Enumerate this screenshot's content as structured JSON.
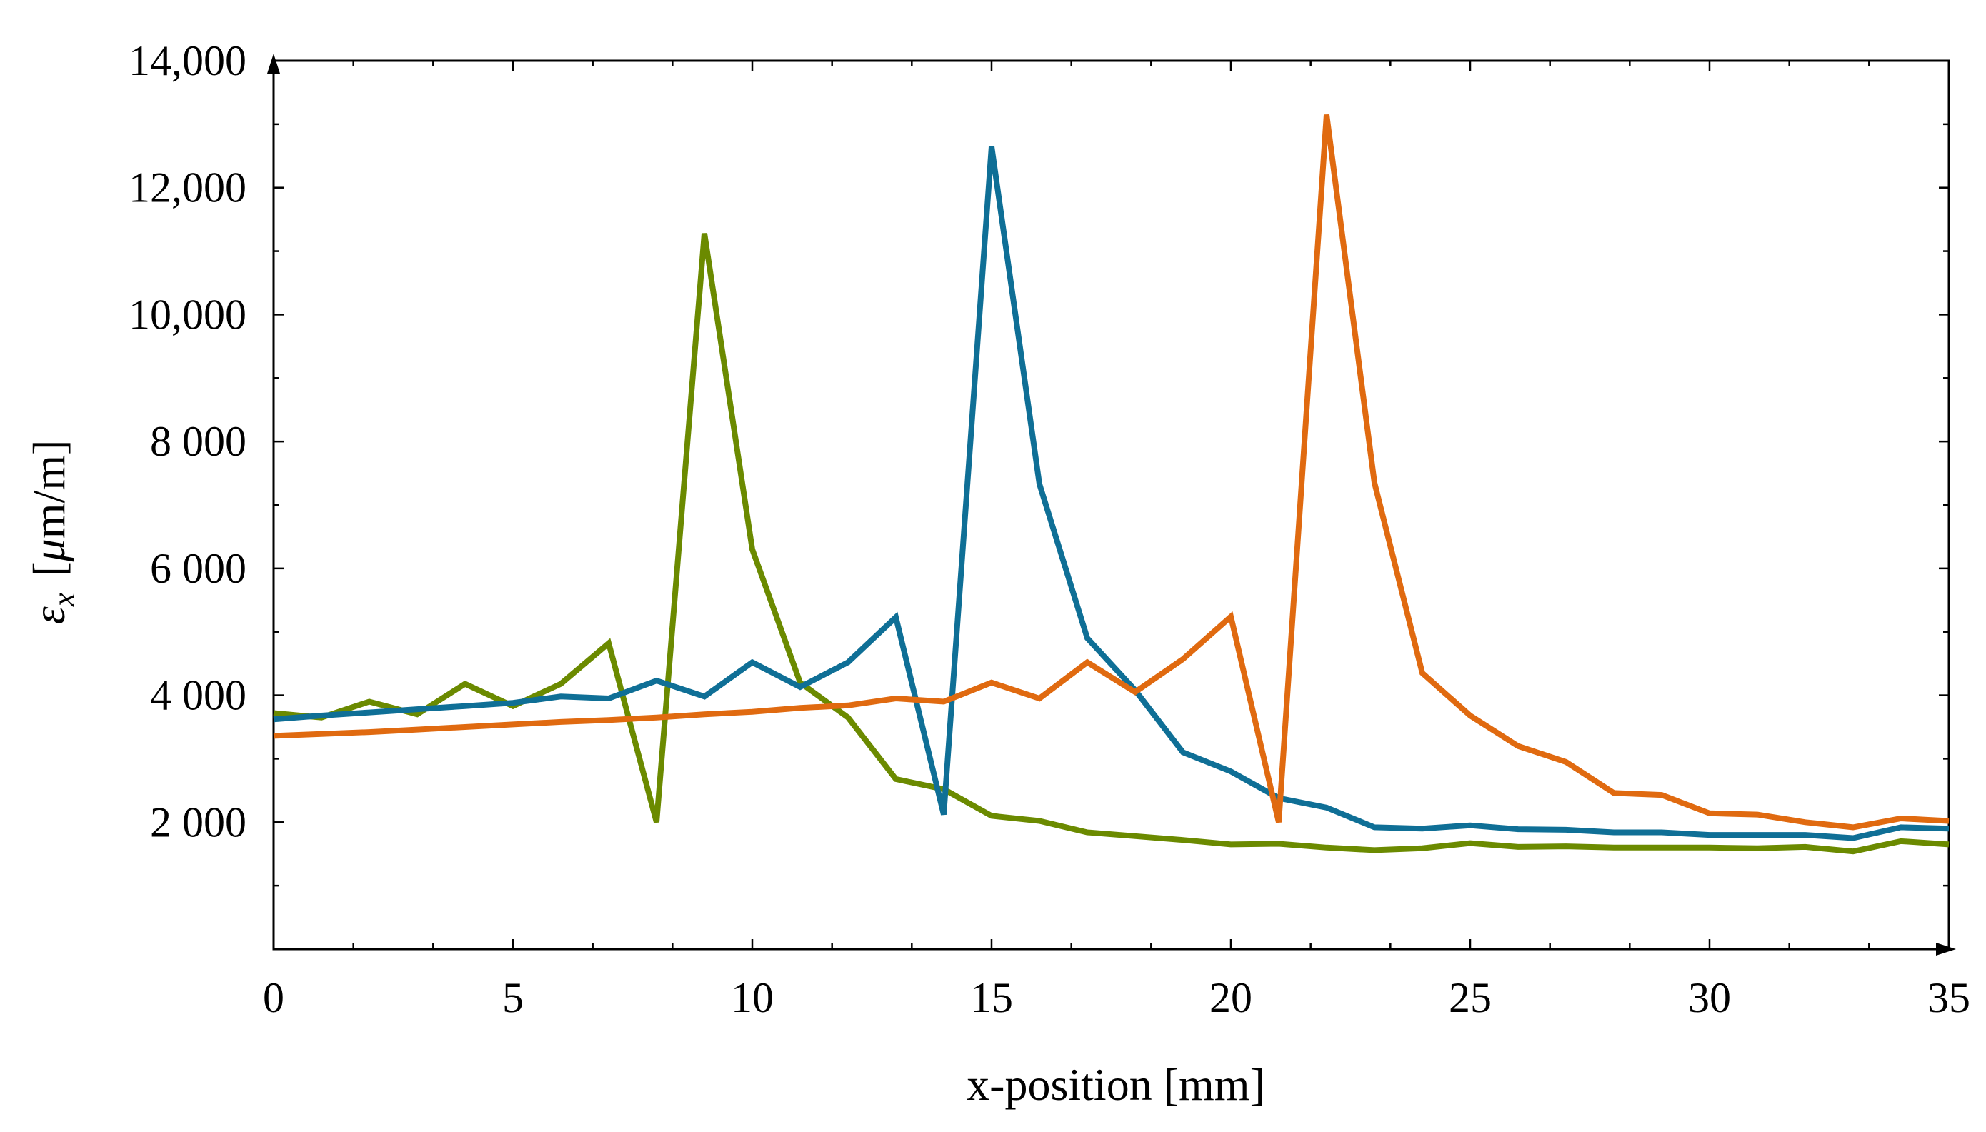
{
  "chart_data": {
    "type": "line",
    "title": "",
    "xlabel": "x-position [mm]",
    "ylabel_parts": {
      "symbol": "ε",
      "subscript": "x",
      "bracket_open": "[",
      "mu": "μ",
      "unit": "m/m",
      "bracket_close": "]"
    },
    "xlim": [
      0,
      35
    ],
    "ylim": [
      0,
      14000
    ],
    "x_ticks": [
      0,
      5,
      10,
      15,
      20,
      25,
      30,
      35
    ],
    "x_tick_labels": [
      "0",
      "5",
      "10",
      "15",
      "20",
      "25",
      "30",
      "35"
    ],
    "y_ticks": [
      2000,
      4000,
      6000,
      8000,
      10000,
      12000,
      14000
    ],
    "y_tick_labels": [
      "2 000",
      "4 000",
      "6 000",
      "8 000",
      "10,000",
      "12,000",
      "14,000"
    ],
    "grid": false,
    "x": [
      0,
      1,
      2,
      3,
      4,
      5,
      6,
      7,
      8,
      9,
      10,
      11,
      12,
      13,
      14,
      15,
      16,
      17,
      18,
      19,
      20,
      21,
      22,
      23,
      24,
      25,
      26,
      27,
      28,
      29,
      30,
      31,
      32,
      33,
      34,
      35
    ],
    "series": [
      {
        "name": "green",
        "color": "#6b8a00",
        "values": [
          3720,
          3650,
          3900,
          3700,
          4180,
          3830,
          4180,
          4820,
          2000,
          11280,
          6300,
          4200,
          3650,
          2680,
          2520,
          2100,
          2020,
          1840,
          1780,
          1720,
          1650,
          1660,
          1600,
          1560,
          1590,
          1670,
          1610,
          1620,
          1600,
          1600,
          1600,
          1590,
          1610,
          1540,
          1700,
          1650
        ]
      },
      {
        "name": "blue",
        "color": "#0f6f96",
        "values": [
          3620,
          3680,
          3730,
          3780,
          3830,
          3880,
          3980,
          3950,
          4230,
          3980,
          4520,
          4130,
          4520,
          5230,
          2120,
          12650,
          7330,
          4900,
          4080,
          3100,
          2800,
          2380,
          2230,
          1920,
          1900,
          1950,
          1890,
          1880,
          1840,
          1840,
          1800,
          1800,
          1800,
          1750,
          1920,
          1900
        ]
      },
      {
        "name": "orange",
        "color": "#e06a10",
        "values": [
          3360,
          3390,
          3420,
          3460,
          3500,
          3540,
          3580,
          3610,
          3650,
          3700,
          3740,
          3800,
          3840,
          3950,
          3900,
          4200,
          3950,
          4520,
          4050,
          4570,
          5240,
          2000,
          13150,
          7350,
          4350,
          3680,
          3200,
          2950,
          2460,
          2430,
          2140,
          2120,
          2000,
          1920,
          2060,
          2020
        ]
      }
    ]
  }
}
